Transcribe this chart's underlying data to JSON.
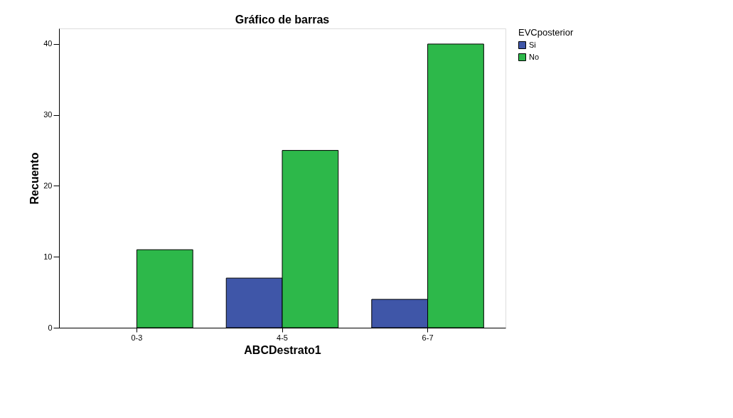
{
  "chart_data": {
    "type": "bar",
    "title": "Gráfico de barras",
    "xlabel": "ABCDestrato1",
    "ylabel": "Recuento",
    "legend_title": "EVCposterior",
    "categories": [
      "0-3",
      "4-5",
      "6-7"
    ],
    "series": [
      {
        "name": "Si",
        "color": "#3f56a8",
        "values": [
          null,
          7,
          4
        ]
      },
      {
        "name": "No",
        "color": "#2db84a",
        "values": [
          11,
          25,
          40
        ]
      }
    ],
    "ylim": [
      0,
      42.2
    ],
    "yticks": [
      0,
      10,
      20,
      30,
      40
    ],
    "grid": false,
    "legend": "top right"
  }
}
